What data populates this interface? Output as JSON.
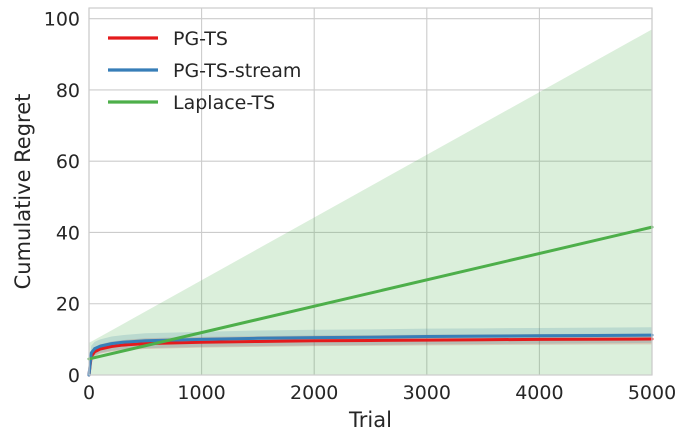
{
  "chart_data": {
    "type": "line",
    "xlabel": "Trial",
    "ylabel": "Cumulative Regret",
    "xlim": [
      0,
      5000
    ],
    "ylim": [
      0,
      103
    ],
    "xticks": [
      0,
      1000,
      2000,
      3000,
      4000,
      5000
    ],
    "yticks": [
      0,
      20,
      40,
      60,
      80,
      100
    ],
    "grid": true,
    "legend_position": "top-left",
    "series": [
      {
        "name": "PG-TS",
        "color": "#e41a1c",
        "x": [
          0,
          20,
          50,
          100,
          200,
          300,
          500,
          1000,
          1500,
          2000,
          2500,
          3000,
          3500,
          4000,
          4500,
          5000
        ],
        "y": [
          0,
          5.2,
          6.5,
          7.3,
          8.0,
          8.4,
          8.8,
          9.2,
          9.4,
          9.6,
          9.7,
          9.8,
          9.9,
          10.0,
          10.05,
          10.1
        ],
        "band_lower": [
          0,
          4.2,
          5.3,
          6.0,
          6.6,
          7.0,
          7.3,
          7.7,
          7.9,
          8.1,
          8.2,
          8.3,
          8.4,
          8.5,
          8.55,
          8.6
        ],
        "band_upper": [
          0,
          6.2,
          7.7,
          8.6,
          9.4,
          9.8,
          10.3,
          10.7,
          10.9,
          11.1,
          11.2,
          11.3,
          11.4,
          11.5,
          11.55,
          11.6
        ]
      },
      {
        "name": "PG-TS-stream",
        "color": "#377eb8",
        "x": [
          0,
          20,
          50,
          100,
          200,
          300,
          500,
          1000,
          1500,
          2000,
          2500,
          3000,
          3500,
          4000,
          4500,
          5000
        ],
        "y": [
          0,
          6.2,
          7.4,
          8.1,
          8.8,
          9.2,
          9.6,
          10.0,
          10.3,
          10.5,
          10.6,
          10.8,
          10.9,
          11.0,
          11.1,
          11.2
        ],
        "band_lower": [
          0,
          4.2,
          5.5,
          6.2,
          6.8,
          7.2,
          7.5,
          7.9,
          8.1,
          8.3,
          8.4,
          8.6,
          8.7,
          8.8,
          8.9,
          9.0
        ],
        "band_upper": [
          0,
          8.2,
          9.3,
          10.0,
          10.8,
          11.2,
          11.7,
          12.1,
          12.5,
          12.7,
          12.8,
          13.0,
          13.1,
          13.2,
          13.3,
          13.4
        ]
      },
      {
        "name": "Laplace-TS",
        "color": "#4daf4a",
        "x": [
          0,
          5000
        ],
        "y": [
          4.5,
          41.5
        ],
        "band_lower": [
          0,
          0
        ],
        "band_upper": [
          9.0,
          97.0
        ]
      }
    ]
  }
}
